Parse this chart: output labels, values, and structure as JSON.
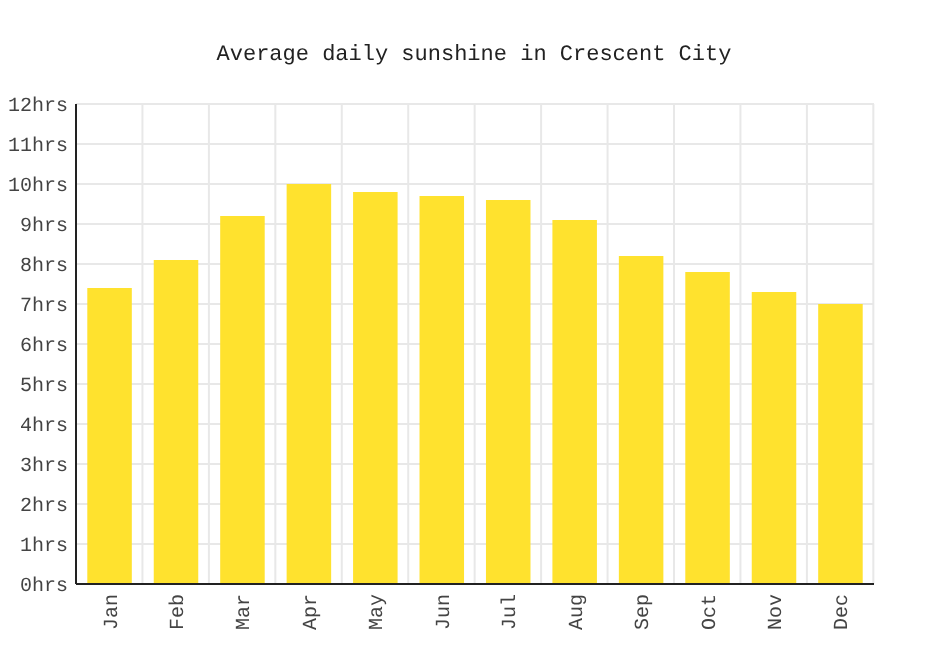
{
  "chart_data": {
    "type": "bar",
    "title": "Average daily sunshine in Crescent City",
    "categories": [
      "Jan",
      "Feb",
      "Mar",
      "Apr",
      "May",
      "Jun",
      "Jul",
      "Aug",
      "Sep",
      "Oct",
      "Nov",
      "Dec"
    ],
    "values": [
      7.4,
      8.1,
      9.2,
      10.0,
      9.8,
      9.7,
      9.6,
      9.1,
      8.2,
      7.8,
      7.3,
      7.0
    ],
    "color": "#ffe22e",
    "ylim": [
      0,
      12
    ],
    "yticks": [
      {
        "value": 0,
        "label": "0hrs"
      },
      {
        "value": 1,
        "label": "1hrs"
      },
      {
        "value": 2,
        "label": "2hrs"
      },
      {
        "value": 3,
        "label": "3hrs"
      },
      {
        "value": 4,
        "label": "4hrs"
      },
      {
        "value": 5,
        "label": "5hrs"
      },
      {
        "value": 6,
        "label": "6hrs"
      },
      {
        "value": 7,
        "label": "7hrs"
      },
      {
        "value": 8,
        "label": "8hrs"
      },
      {
        "value": 9,
        "label": "9hrs"
      },
      {
        "value": 10,
        "label": "10hrs"
      },
      {
        "value": 11,
        "label": "11hrs"
      },
      {
        "value": 12,
        "label": "12hrs"
      }
    ],
    "grid": true
  }
}
